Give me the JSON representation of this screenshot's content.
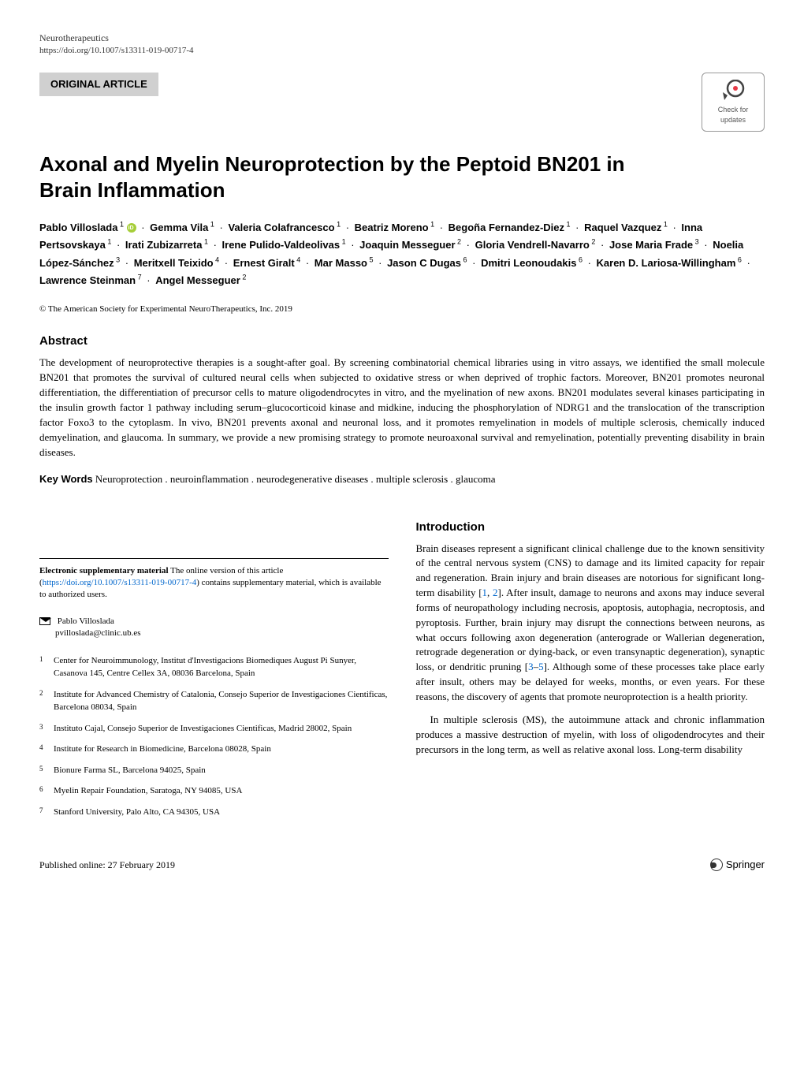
{
  "header": {
    "journal": "Neurotherapeutics",
    "doi": "https://doi.org/10.1007/s13311-019-00717-4"
  },
  "article_type": "ORIGINAL ARTICLE",
  "check_updates": {
    "line1": "Check for",
    "line2": "updates"
  },
  "title": "Axonal and Myelin Neuroprotection by the Peptoid BN201 in Brain Inflammation",
  "authors": [
    {
      "name": "Pablo Villoslada",
      "sup": "1",
      "orcid": true
    },
    {
      "name": "Gemma Vila",
      "sup": "1"
    },
    {
      "name": "Valeria Colafrancesco",
      "sup": "1"
    },
    {
      "name": "Beatriz Moreno",
      "sup": "1"
    },
    {
      "name": "Begoña Fernandez-Diez",
      "sup": "1"
    },
    {
      "name": "Raquel Vazquez",
      "sup": "1"
    },
    {
      "name": "Inna Pertsovskaya",
      "sup": "1"
    },
    {
      "name": "Irati Zubizarreta",
      "sup": "1"
    },
    {
      "name": "Irene Pulido-Valdeolivas",
      "sup": "1"
    },
    {
      "name": "Joaquin Messeguer",
      "sup": "2"
    },
    {
      "name": "Gloria Vendrell-Navarro",
      "sup": "2"
    },
    {
      "name": "Jose Maria Frade",
      "sup": "3"
    },
    {
      "name": "Noelia López-Sánchez",
      "sup": "3"
    },
    {
      "name": "Meritxell Teixido",
      "sup": "4"
    },
    {
      "name": "Ernest Giralt",
      "sup": "4"
    },
    {
      "name": "Mar Masso",
      "sup": "5"
    },
    {
      "name": "Jason C Dugas",
      "sup": "6"
    },
    {
      "name": "Dmitri Leonoudakis",
      "sup": "6"
    },
    {
      "name": "Karen D. Lariosa-Willingham",
      "sup": "6"
    },
    {
      "name": "Lawrence Steinman",
      "sup": "7"
    },
    {
      "name": "Angel Messeguer",
      "sup": "2"
    }
  ],
  "copyright": "© The American Society for Experimental NeuroTherapeutics, Inc. 2019",
  "abstract": {
    "heading": "Abstract",
    "text": "The development of neuroprotective therapies is a sought-after goal. By screening combinatorial chemical libraries using in vitro assays, we identified the small molecule BN201 that promotes the survival of cultured neural cells when subjected to oxidative stress or when deprived of trophic factors. Moreover, BN201 promotes neuronal differentiation, the differentiation of precursor cells to mature oligodendrocytes in vitro, and the myelination of new axons. BN201 modulates several kinases participating in the insulin growth factor 1 pathway including serum–glucocorticoid kinase and midkine, inducing the phosphorylation of NDRG1 and the translocation of the transcription factor Foxo3 to the cytoplasm. In vivo, BN201 prevents axonal and neuronal loss, and it promotes remyelination in models of multiple sclerosis, chemically induced demyelination, and glaucoma. In summary, we provide a new promising strategy to promote neuroaxonal survival and remyelination, potentially preventing disability in brain diseases."
  },
  "keywords": {
    "label": "Key Words",
    "text": "Neuroprotection . neuroinflammation . neurodegenerative diseases . multiple sclerosis . glaucoma"
  },
  "supplementary": {
    "label": "Electronic supplementary material",
    "text": "The online version of this article ",
    "doi_link": "https://doi.org/10.1007/s13311-019-00717-4",
    "text_after": " contains supplementary material, which is available to authorized users."
  },
  "corresponding": {
    "name": "Pablo Villoslada",
    "email": "pvilloslada@clinic.ub.es"
  },
  "affiliations": [
    {
      "num": "1",
      "text": "Center for Neuroimmunology, Institut d'Investigacions Biomediques August Pi Sunyer, Casanova 145, Centre Cellex 3A, 08036 Barcelona, Spain"
    },
    {
      "num": "2",
      "text": "Institute for Advanced Chemistry of Catalonia, Consejo Superior de Investigaciones Cientificas, Barcelona 08034, Spain"
    },
    {
      "num": "3",
      "text": "Instituto Cajal, Consejo Superior de Investigaciones Cientificas, Madrid 28002, Spain"
    },
    {
      "num": "4",
      "text": "Institute for Research in Biomedicine, Barcelona 08028, Spain"
    },
    {
      "num": "5",
      "text": "Bionure Farma SL, Barcelona 94025, Spain"
    },
    {
      "num": "6",
      "text": "Myelin Repair Foundation, Saratoga, NY 94085, USA"
    },
    {
      "num": "7",
      "text": "Stanford University, Palo Alto, CA 94305, USA"
    }
  ],
  "introduction": {
    "heading": "Introduction",
    "para1_a": "Brain diseases represent a significant clinical challenge due to the known sensitivity of the central nervous system (CNS) to damage and its limited capacity for repair and regeneration. Brain injury and brain diseases are notorious for significant long-term disability [",
    "ref1": "1",
    "ref2": "2",
    "para1_b": "]. After insult, damage to neurons and axons may induce several forms of neuropathology including necrosis, apoptosis, autophagia, necroptosis, and pyroptosis. Further, brain injury may disrupt the connections between neurons, as what occurs following axon degeneration (anterograde or Wallerian degeneration, retrograde degeneration or dying-back, or even transynaptic degeneration), synaptic loss, or dendritic pruning [",
    "ref3": "3",
    "ref5": "5",
    "para1_c": "]. Although some of these processes take place early after insult, others may be delayed for weeks, months, or even years. For these reasons, the discovery of agents that promote neuroprotection is a health priority.",
    "para2": "In multiple sclerosis (MS), the autoimmune attack and chronic inflammation produces a massive destruction of myelin, with loss of oligodendrocytes and their precursors in the long term, as well as relative axonal loss. Long-term disability"
  },
  "footer": {
    "published": "Published online: 27 February 2019",
    "publisher": "Springer"
  },
  "colors": {
    "link": "#0066cc",
    "tab_bg": "#d0d0d0",
    "orcid": "#a6ce39",
    "text": "#000000",
    "bg": "#ffffff"
  }
}
